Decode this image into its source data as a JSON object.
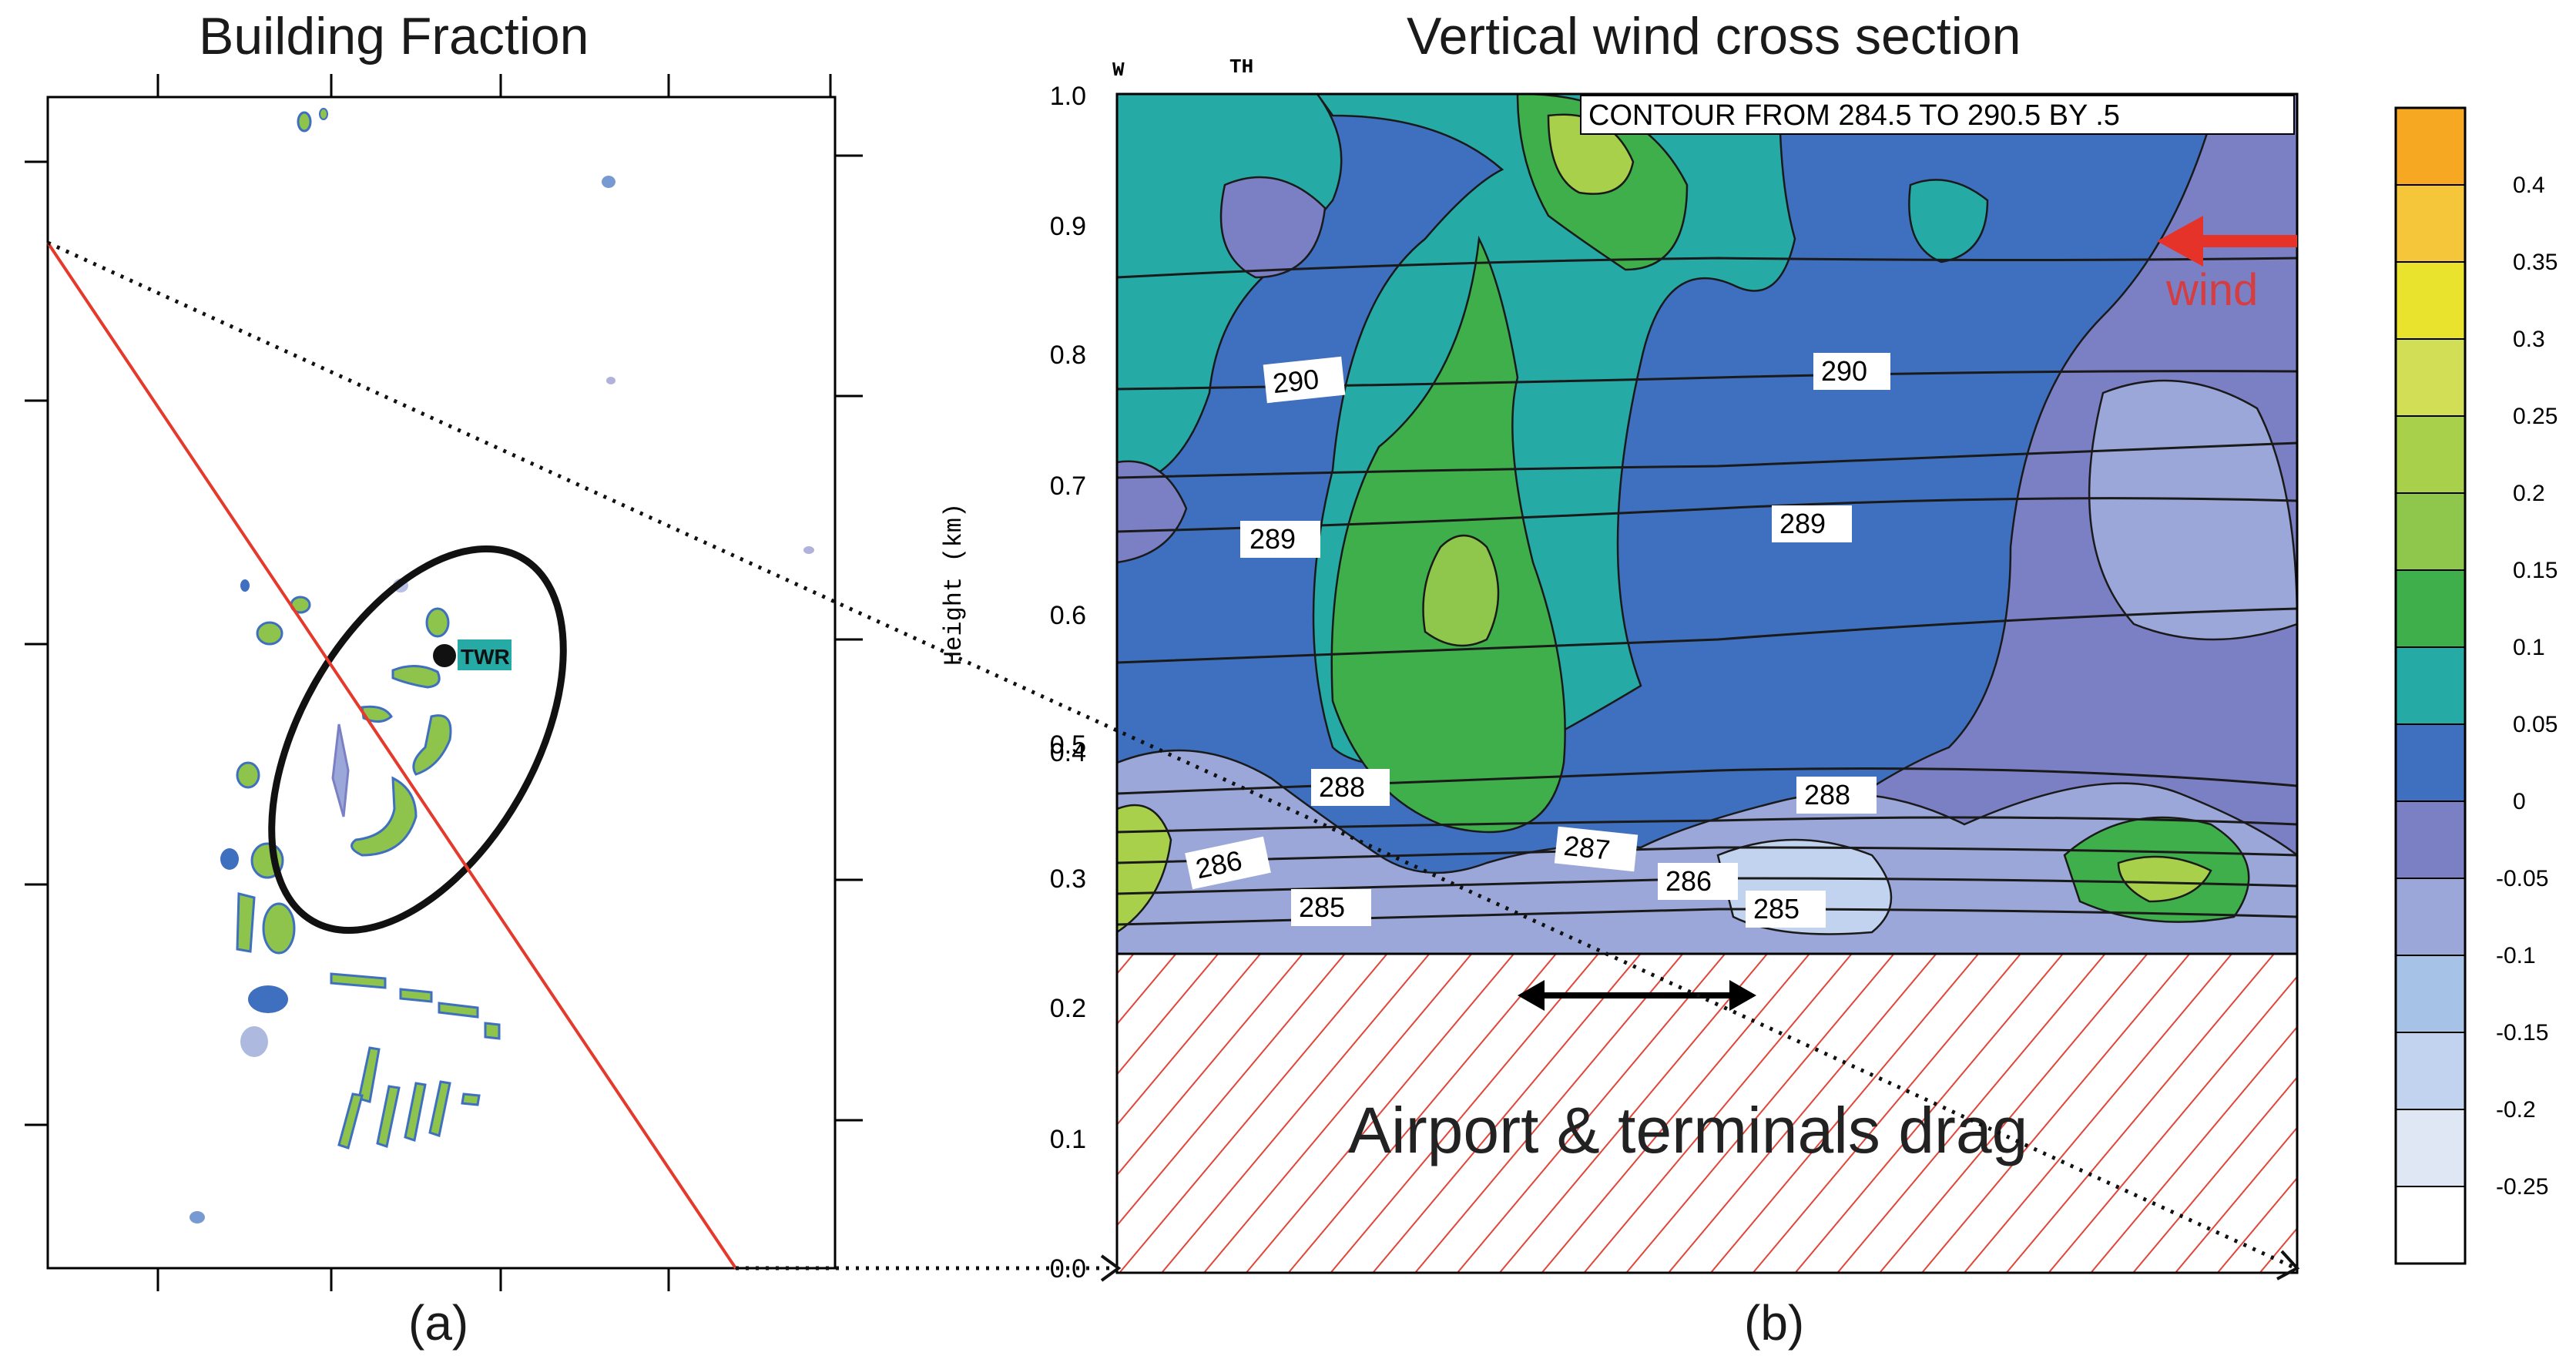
{
  "panel_a": {
    "title": "Building Fraction",
    "caption": "(a)",
    "marker_label": "TWR"
  },
  "panel_b": {
    "title": "Vertical wind cross section",
    "caption": "(b)",
    "contour_note": "CONTOUR FROM 284.5 TO 290.5 BY .5",
    "top_labels": [
      "W",
      "TH"
    ],
    "ylabel": "Height (km)",
    "yticks": [
      "1.0",
      "0.9",
      "0.8",
      "0.7",
      "0.6",
      "0.5",
      "0.4",
      "0.3",
      "0.2",
      "0.1",
      "0.0"
    ],
    "contour_labels": [
      "290",
      "290",
      "289",
      "289",
      "288",
      "288",
      "287",
      "286",
      "286",
      "285",
      "285"
    ],
    "wind_label": "wind",
    "drag_label": "Airport & terminals drag"
  },
  "colorbar": {
    "ticks": [
      "0.4",
      "0.35",
      "0.3",
      "0.25",
      "0.2",
      "0.15",
      "0.1",
      "0.05",
      "0",
      "-0.05",
      "-0.1",
      "-0.15",
      "-0.2",
      "-0.25"
    ],
    "colors": [
      "#f7a823",
      "#f5c63a",
      "#eae32e",
      "#d2de55",
      "#a8d04b",
      "#8fc74c",
      "#3faf4b",
      "#25aaa6",
      "#3f6fbf",
      "#7b7fc4",
      "#9aa7d8",
      "#a6c2e6",
      "#c1d3ee",
      "#dfe7f4",
      "#ffffff"
    ]
  },
  "colors": {
    "section_line": "#e53a2b",
    "wind_arrow": "#e5332a",
    "hatch": "#e0463a"
  }
}
